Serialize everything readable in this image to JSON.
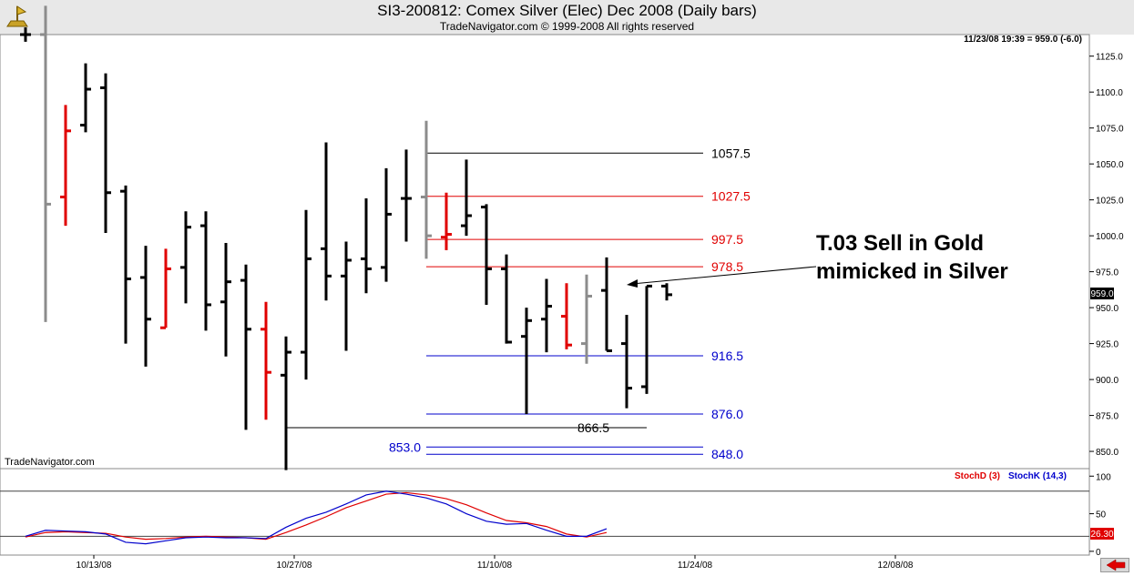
{
  "header": {
    "title": "SI3-200812:  Comex Silver (Elec) Dec 2008  (Daily bars)",
    "subtitle": "TradeNavigator.com © 1999-2008 All rights reserved"
  },
  "readout": "11/23/08 19:39 = 959.0 (-6.0)",
  "watermark": "TradeNavigator.com",
  "current_price_label": "959.0",
  "stoch_value_label": "26.30",
  "annotation": {
    "line1": "T.03 Sell in Gold",
    "line2": "mimicked in Silver"
  },
  "chart_data": [
    {
      "type": "bar",
      "subtype": "ohlc",
      "title": "SI3-200812:  Comex Silver (Elec) Dec 2008  (Daily bars)",
      "ylim": [
        838,
        1140
      ],
      "y_ticks": [
        850,
        875,
        900,
        925,
        950,
        975,
        1000,
        1025,
        1050,
        1075,
        1100,
        1125
      ],
      "x_tick_labels": [
        {
          "label": "10/13/08",
          "bar": 3
        },
        {
          "label": "10/27/08",
          "bar": 13
        },
        {
          "label": "11/10/08",
          "bar": 23
        },
        {
          "label": "11/24/08",
          "bar": 33
        },
        {
          "label": "12/08/08",
          "bar": 43
        }
      ],
      "bars": [
        {
          "o": 1140,
          "h": 1145,
          "l": 1135,
          "c": 1140,
          "color": "black"
        },
        {
          "o": 1140,
          "h": 1160,
          "l": 940,
          "c": 1022,
          "color": "gray"
        },
        {
          "o": 1027,
          "h": 1091,
          "l": 1007,
          "c": 1073,
          "color": "red"
        },
        {
          "o": 1077,
          "h": 1120,
          "l": 1072,
          "c": 1102,
          "color": "black"
        },
        {
          "o": 1103,
          "h": 1113,
          "l": 1002,
          "c": 1030,
          "color": "black"
        },
        {
          "o": 1031,
          "h": 1035,
          "l": 925,
          "c": 970,
          "color": "black"
        },
        {
          "o": 971,
          "h": 993,
          "l": 909,
          "c": 942,
          "color": "black"
        },
        {
          "o": 936,
          "h": 991,
          "l": 936,
          "c": 977,
          "color": "red"
        },
        {
          "o": 978,
          "h": 1017,
          "l": 953,
          "c": 1006,
          "color": "black"
        },
        {
          "o": 1007,
          "h": 1017,
          "l": 934,
          "c": 952,
          "color": "black"
        },
        {
          "o": 954,
          "h": 995,
          "l": 916,
          "c": 968,
          "color": "black"
        },
        {
          "o": 969,
          "h": 980,
          "l": 865,
          "c": 935,
          "color": "black"
        },
        {
          "o": 935,
          "h": 954,
          "l": 872,
          "c": 905,
          "color": "red"
        },
        {
          "o": 903,
          "h": 930,
          "l": 837,
          "c": 919,
          "color": "black"
        },
        {
          "o": 919,
          "h": 1018,
          "l": 900,
          "c": 984,
          "color": "black"
        },
        {
          "o": 991,
          "h": 1065,
          "l": 955,
          "c": 972,
          "color": "black"
        },
        {
          "o": 972,
          "h": 996,
          "l": 920,
          "c": 983,
          "color": "black"
        },
        {
          "o": 984,
          "h": 1026,
          "l": 960,
          "c": 977,
          "color": "black"
        },
        {
          "o": 978,
          "h": 1047,
          "l": 968,
          "c": 1015,
          "color": "black"
        },
        {
          "o": 1026,
          "h": 1060,
          "l": 996,
          "c": 1026,
          "color": "black"
        },
        {
          "o": 1027,
          "h": 1080,
          "l": 984,
          "c": 1000,
          "color": "gray"
        },
        {
          "o": 999,
          "h": 1030,
          "l": 990,
          "c": 1001,
          "color": "red"
        },
        {
          "o": 1007,
          "h": 1053,
          "l": 1000,
          "c": 1014,
          "color": "black"
        },
        {
          "o": 1020,
          "h": 1022,
          "l": 952,
          "c": 977,
          "color": "black"
        },
        {
          "o": 977,
          "h": 987,
          "l": 925,
          "c": 926,
          "color": "black"
        },
        {
          "o": 930,
          "h": 950,
          "l": 876,
          "c": 941,
          "color": "black"
        },
        {
          "o": 942,
          "h": 970,
          "l": 919,
          "c": 951,
          "color": "black"
        },
        {
          "o": 944,
          "h": 967,
          "l": 921,
          "c": 924,
          "color": "red"
        },
        {
          "o": 925,
          "h": 973,
          "l": 911,
          "c": 958,
          "color": "gray"
        },
        {
          "o": 962,
          "h": 985,
          "l": 920,
          "c": 920,
          "color": "black"
        },
        {
          "o": 925,
          "h": 945,
          "l": 880,
          "c": 894,
          "color": "black"
        },
        {
          "o": 895,
          "h": 965,
          "l": 890,
          "c": 965,
          "color": "black"
        },
        {
          "o": 965,
          "h": 967,
          "l": 955,
          "c": 959,
          "color": "black"
        }
      ],
      "levels": [
        {
          "value": 1057.5,
          "label": "1057.5",
          "color": "#000000",
          "from_bar": 20
        },
        {
          "value": 1027.5,
          "label": "1027.5",
          "color": "#e00000",
          "from_bar": 20
        },
        {
          "value": 997.5,
          "label": "997.5",
          "color": "#e00000",
          "from_bar": 20
        },
        {
          "value": 978.5,
          "label": "978.5",
          "color": "#e00000",
          "from_bar": 20
        },
        {
          "value": 916.5,
          "label": "916.5",
          "color": "#0000cc",
          "from_bar": 20
        },
        {
          "value": 876.0,
          "label": "876.0",
          "color": "#0000cc",
          "from_bar": 20
        },
        {
          "value": 866.5,
          "label": "866.5",
          "color": "#000000",
          "from_bar": 13,
          "to_bar": 31,
          "label_bar": 27
        },
        {
          "value": 853.0,
          "label": "853.0",
          "color": "#0000cc",
          "from_bar": 20,
          "label_left": true
        },
        {
          "value": 848.0,
          "label": "848.0",
          "color": "#0000cc",
          "from_bar": 20
        }
      ]
    },
    {
      "type": "line",
      "ylim": [
        -5,
        110
      ],
      "y_ticks": [
        0,
        50,
        100
      ],
      "reference_lines": [
        20,
        80
      ],
      "series": [
        {
          "name": "StochD (3)",
          "color": "#e00000",
          "values": [
            19,
            25,
            26,
            25,
            24,
            19,
            16,
            17,
            19,
            20,
            19,
            18,
            16,
            25,
            35,
            46,
            58,
            67,
            76,
            78,
            75,
            70,
            62,
            51,
            41,
            38,
            33,
            23,
            19,
            25
          ]
        },
        {
          "name": "StochK (14,3)",
          "color": "#0000cc",
          "values": [
            20,
            28,
            27,
            26,
            23,
            12,
            10,
            14,
            18,
            19,
            18,
            18,
            17,
            32,
            44,
            52,
            63,
            75,
            80,
            76,
            71,
            63,
            50,
            40,
            36,
            37,
            28,
            20,
            20,
            30
          ]
        }
      ]
    }
  ]
}
